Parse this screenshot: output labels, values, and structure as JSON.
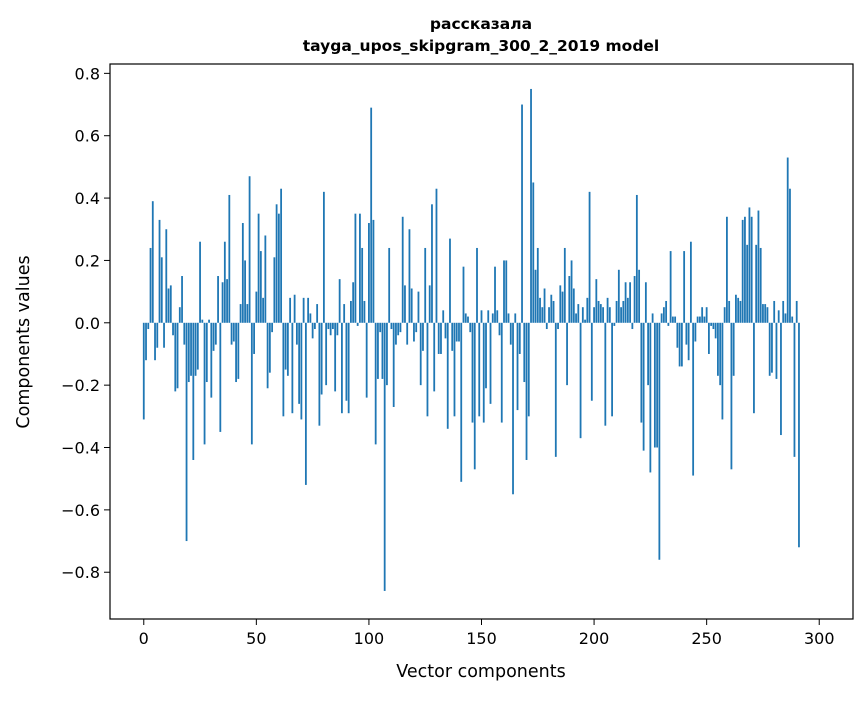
{
  "chart_data": {
    "type": "bar",
    "title_line1": "рассказала",
    "title_line2": "tayga_upos_skipgram_300_2_2019 model",
    "xlabel": "Vector components",
    "ylabel": "Components values",
    "xlim": [
      -15,
      315
    ],
    "ylim": [
      -0.95,
      0.83
    ],
    "x_ticks": [
      0,
      50,
      100,
      150,
      200,
      250,
      300
    ],
    "x_tick_labels": [
      "0",
      "50",
      "100",
      "150",
      "200",
      "250",
      "300"
    ],
    "y_ticks": [
      -0.8,
      -0.6,
      -0.4,
      -0.2,
      0.0,
      0.2,
      0.4,
      0.6,
      0.8
    ],
    "y_tick_labels": [
      "−0.8",
      "−0.6",
      "−0.4",
      "−0.2",
      "0.0",
      "0.2",
      "0.4",
      "0.6",
      "0.8"
    ],
    "bar_color": "#1f77b4",
    "values": [
      -0.31,
      -0.12,
      -0.02,
      0.24,
      0.39,
      -0.12,
      -0.08,
      0.33,
      0.21,
      -0.08,
      0.3,
      0.11,
      0.12,
      -0.04,
      -0.22,
      -0.21,
      0.05,
      0.15,
      -0.07,
      -0.7,
      -0.19,
      -0.17,
      -0.44,
      -0.17,
      -0.15,
      0.26,
      0.01,
      -0.39,
      -0.19,
      0.01,
      -0.24,
      -0.09,
      -0.07,
      0.15,
      -0.35,
      0.13,
      0.26,
      0.14,
      0.41,
      -0.07,
      -0.06,
      -0.19,
      -0.18,
      0.06,
      0.32,
      0.2,
      0.06,
      0.47,
      -0.39,
      -0.1,
      0.1,
      0.35,
      0.23,
      0.08,
      0.28,
      -0.21,
      -0.16,
      -0.03,
      0.21,
      0.38,
      0.35,
      0.43,
      -0.3,
      -0.15,
      -0.17,
      0.08,
      -0.29,
      0.09,
      -0.07,
      -0.26,
      -0.31,
      0.08,
      -0.52,
      0.08,
      0.03,
      -0.05,
      -0.02,
      0.06,
      -0.33,
      -0.23,
      0.42,
      -0.2,
      -0.02,
      -0.04,
      -0.02,
      -0.22,
      -0.04,
      0.14,
      -0.29,
      0.06,
      -0.25,
      -0.29,
      0.07,
      0.13,
      0.35,
      -0.01,
      0.35,
      0.24,
      0.07,
      -0.24,
      0.32,
      0.69,
      0.33,
      -0.39,
      -0.18,
      -0.03,
      -0.18,
      -0.86,
      -0.2,
      0.24,
      -0.02,
      -0.27,
      -0.07,
      -0.04,
      -0.03,
      0.34,
      0.12,
      -0.07,
      0.3,
      0.11,
      -0.06,
      -0.03,
      0.1,
      -0.2,
      -0.09,
      0.24,
      -0.3,
      0.12,
      0.38,
      -0.22,
      0.43,
      -0.1,
      -0.1,
      0.04,
      -0.05,
      -0.34,
      0.27,
      -0.09,
      -0.3,
      -0.06,
      -0.06,
      -0.51,
      0.18,
      0.03,
      0.02,
      -0.03,
      -0.32,
      -0.47,
      0.24,
      -0.3,
      0.04,
      -0.32,
      -0.21,
      0.04,
      -0.26,
      0.03,
      0.18,
      0.04,
      -0.04,
      -0.32,
      0.2,
      0.2,
      0.03,
      -0.07,
      -0.55,
      0.03,
      -0.28,
      -0.1,
      0.7,
      -0.19,
      -0.44,
      -0.3,
      0.75,
      0.45,
      0.17,
      0.24,
      0.08,
      0.05,
      0.11,
      -0.02,
      0.05,
      0.09,
      0.07,
      -0.43,
      -0.02,
      0.12,
      0.1,
      0.24,
      -0.2,
      0.15,
      0.2,
      0.11,
      0.03,
      0.06,
      -0.37,
      0.05,
      0.01,
      0.08,
      0.42,
      -0.25,
      0.05,
      0.14,
      0.07,
      0.06,
      0.05,
      -0.33,
      0.08,
      0.05,
      -0.3,
      -0.01,
      0.07,
      0.17,
      0.05,
      0.07,
      0.13,
      0.08,
      0.13,
      -0.02,
      0.15,
      0.41,
      0.17,
      -0.32,
      -0.41,
      0.13,
      -0.2,
      -0.48,
      0.03,
      -0.4,
      -0.4,
      -0.76,
      0.03,
      0.05,
      0.07,
      -0.01,
      0.23,
      0.02,
      0.02,
      -0.08,
      -0.14,
      -0.14,
      0.23,
      -0.07,
      -0.12,
      0.26,
      -0.49,
      -0.06,
      0.02,
      0.02,
      0.05,
      0.02,
      0.05,
      -0.1,
      -0.01,
      -0.02,
      -0.05,
      -0.17,
      -0.2,
      -0.31,
      0.05,
      0.34,
      0.07,
      -0.47,
      -0.17,
      0.09,
      0.08,
      0.07,
      0.33,
      0.34,
      0.25,
      0.37,
      0.34,
      -0.29,
      0.25,
      0.36,
      0.24,
      0.06,
      0.06,
      0.05,
      -0.17,
      -0.16,
      0.07,
      -0.18,
      0.04,
      -0.36,
      0.07,
      0.03,
      0.53,
      0.43,
      0.02,
      -0.43,
      0.07,
      -0.72
    ]
  }
}
